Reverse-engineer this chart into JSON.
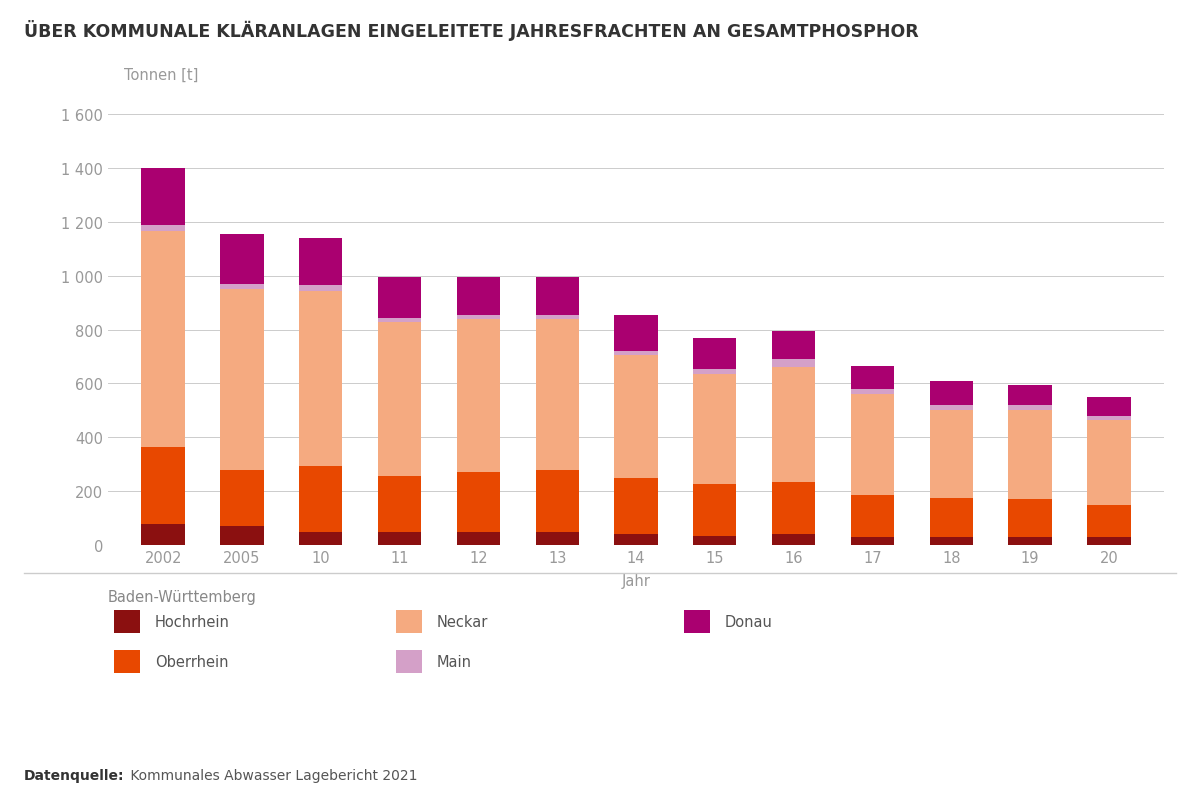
{
  "title": "ÜBER KOMMUNALE KLÄRANLAGEN EINGELEITETE JAHRESFRACHTEN AN GESAMTPHOSPHOR",
  "ylabel": "Tonnen [t]",
  "xlabel": "Jahr",
  "legend_title": "Baden-Württemberg",
  "years": [
    "2002",
    "2005",
    "10",
    "11",
    "12",
    "13",
    "14",
    "15",
    "16",
    "17",
    "18",
    "19",
    "20"
  ],
  "series": {
    "Hochrhein": [
      80,
      70,
      50,
      50,
      50,
      50,
      40,
      35,
      40,
      30,
      30,
      30,
      30
    ],
    "Oberrhein": [
      285,
      210,
      245,
      205,
      220,
      230,
      210,
      190,
      195,
      155,
      145,
      140,
      120
    ],
    "Neckar": [
      800,
      670,
      650,
      575,
      570,
      560,
      455,
      410,
      425,
      375,
      325,
      330,
      315
    ],
    "Main": [
      25,
      20,
      20,
      15,
      15,
      15,
      15,
      20,
      30,
      20,
      20,
      20,
      15
    ],
    "Donau": [
      210,
      185,
      175,
      150,
      140,
      140,
      135,
      115,
      105,
      85,
      90,
      75,
      70
    ]
  },
  "colors": {
    "Hochrhein": "#8B1010",
    "Oberrhein": "#E84800",
    "Neckar": "#F5AA80",
    "Main": "#D4A0C8",
    "Donau": "#AA0070"
  },
  "ylim": [
    0,
    1700
  ],
  "yticks": [
    0,
    200,
    400,
    600,
    800,
    1000,
    1200,
    1400,
    1600
  ],
  "ytick_labels": [
    "0",
    "200",
    "400",
    "600",
    "800",
    "1 000",
    "1 200",
    "1 400",
    "1 600"
  ],
  "background_color": "#ffffff",
  "grid_color": "#cccccc",
  "bar_width": 0.55,
  "title_fontsize": 12.5,
  "axis_label_fontsize": 10.5,
  "tick_fontsize": 10.5,
  "legend_fontsize": 10.5,
  "source_bold": "Datenquelle:",
  "source_regular": " Kommunales Abwasser Lagebericht 2021"
}
